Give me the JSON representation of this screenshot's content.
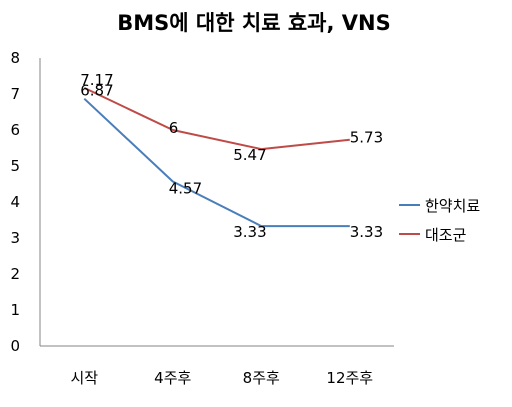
{
  "chart_data": {
    "type": "line",
    "title": "BMS에 대한 치료 효과, VNS",
    "categories": [
      "시작",
      "4주후",
      "8주후",
      "12주후"
    ],
    "ylim": [
      0,
      8
    ],
    "yticks": [
      0,
      1,
      2,
      3,
      4,
      5,
      6,
      7,
      8
    ],
    "y_tick_labels": [
      "0",
      "1",
      "2",
      "3",
      "4",
      "5",
      "6",
      "7",
      "8"
    ],
    "grid": false,
    "legend_position": "right",
    "series": [
      {
        "name": "한약치료",
        "values": [
          6.87,
          4.57,
          3.33,
          3.33
        ],
        "labels": [
          "6.87",
          "4.57",
          "3.33",
          "3.33"
        ],
        "color": "#4a7ebb"
      },
      {
        "name": "대조군",
        "values": [
          7.17,
          6,
          5.47,
          5.73
        ],
        "labels": [
          "7.17",
          "6",
          "5.47",
          "5.73"
        ],
        "color": "#be4b48"
      }
    ]
  }
}
